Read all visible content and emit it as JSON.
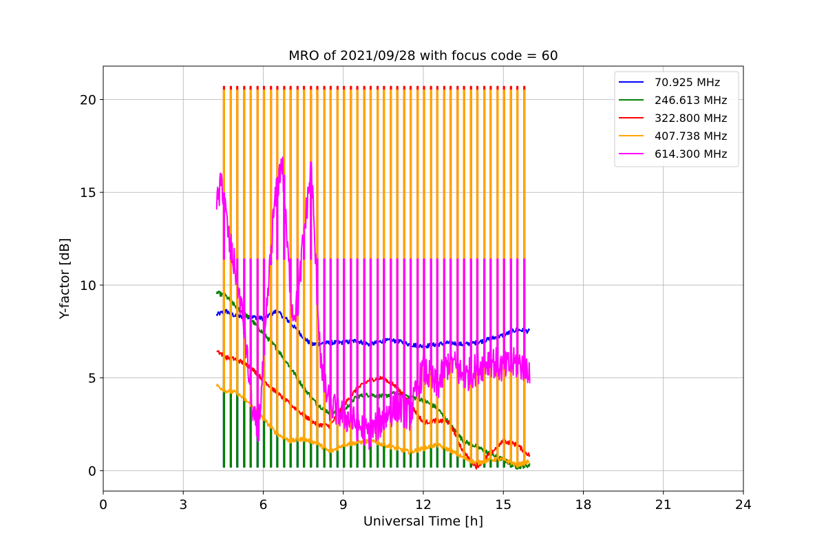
{
  "chart_data": {
    "type": "line",
    "title": "MRO of 2021/09/28 with focus code = 60",
    "xlabel": "Universal Time [h]",
    "ylabel": "Y-factor [dB]",
    "xlim": [
      0,
      24
    ],
    "ylim": [
      -1.1,
      21.8
    ],
    "xticks": [
      0,
      3,
      6,
      9,
      12,
      15,
      18,
      21,
      24
    ],
    "yticks": [
      0,
      5,
      10,
      15,
      20
    ],
    "grid": true,
    "legend_position": "top-right",
    "series": [
      {
        "name": "70.925 MHz",
        "label": " 70.925 MHz",
        "color": "#0000ff",
        "baseline": [
          [
            4.25,
            8.4
          ],
          [
            4.6,
            8.6
          ],
          [
            5.0,
            8.3
          ],
          [
            5.5,
            8.3
          ],
          [
            6.0,
            8.2
          ],
          [
            6.5,
            8.6
          ],
          [
            7.0,
            8.0
          ],
          [
            7.5,
            7.2
          ],
          [
            7.8,
            6.8
          ],
          [
            8.5,
            6.9
          ],
          [
            9.0,
            6.9
          ],
          [
            9.5,
            7.0
          ],
          [
            10.0,
            6.8
          ],
          [
            10.5,
            7.0
          ],
          [
            11.0,
            7.0
          ],
          [
            11.5,
            6.8
          ],
          [
            12.0,
            6.7
          ],
          [
            12.5,
            6.8
          ],
          [
            13.0,
            6.9
          ],
          [
            13.5,
            6.8
          ],
          [
            14.0,
            6.9
          ],
          [
            14.5,
            7.1
          ],
          [
            15.0,
            7.3
          ],
          [
            15.5,
            7.6
          ],
          [
            16.0,
            7.5
          ]
        ],
        "pulse_peak": 0.2,
        "pulse_start": 4.5,
        "pulse_end": 16.0
      },
      {
        "name": "246.613 MHz",
        "label": "246.613 MHz",
        "color": "#008000",
        "baseline": [
          [
            4.25,
            9.6
          ],
          [
            4.6,
            9.4
          ],
          [
            5.0,
            8.8
          ],
          [
            5.5,
            8.2
          ],
          [
            6.0,
            7.4
          ],
          [
            6.5,
            6.6
          ],
          [
            7.0,
            5.6
          ],
          [
            7.5,
            4.5
          ],
          [
            8.0,
            3.6
          ],
          [
            8.5,
            3.1
          ],
          [
            9.0,
            3.2
          ],
          [
            9.5,
            4.0
          ],
          [
            10.0,
            4.1
          ],
          [
            10.5,
            4.0
          ],
          [
            11.0,
            4.2
          ],
          [
            11.5,
            4.0
          ],
          [
            12.0,
            3.8
          ],
          [
            12.5,
            3.4
          ],
          [
            13.0,
            2.5
          ],
          [
            13.5,
            1.6
          ],
          [
            14.0,
            1.3
          ],
          [
            14.5,
            0.9
          ],
          [
            15.0,
            0.6
          ],
          [
            15.5,
            0.2
          ],
          [
            16.0,
            0.3
          ]
        ],
        "pulse_peak": 0.2,
        "pulse_start": 4.5,
        "pulse_end": 16.0
      },
      {
        "name": "322.800 MHz",
        "label": "322.800 MHz",
        "color": "#ff0000",
        "baseline": [
          [
            4.25,
            6.5
          ],
          [
            4.6,
            6.1
          ],
          [
            5.0,
            6.0
          ],
          [
            5.5,
            5.6
          ],
          [
            6.0,
            4.9
          ],
          [
            6.5,
            4.2
          ],
          [
            7.0,
            3.6
          ],
          [
            7.5,
            3.0
          ],
          [
            8.0,
            2.5
          ],
          [
            8.5,
            2.4
          ],
          [
            9.0,
            3.5
          ],
          [
            9.5,
            4.4
          ],
          [
            10.0,
            4.9
          ],
          [
            10.5,
            5.0
          ],
          [
            11.0,
            4.5
          ],
          [
            11.5,
            3.6
          ],
          [
            12.0,
            2.6
          ],
          [
            12.5,
            2.7
          ],
          [
            13.0,
            2.6
          ],
          [
            13.5,
            1.0
          ],
          [
            14.0,
            0.2
          ],
          [
            14.5,
            0.9
          ],
          [
            15.0,
            1.6
          ],
          [
            15.5,
            1.4
          ],
          [
            16.0,
            0.8
          ]
        ],
        "pulse_peak": 20.7,
        "pulse_start": 4.5,
        "pulse_end": 16.0
      },
      {
        "name": "407.738 MHz",
        "label": "407.738 MHz",
        "color": "#ffa500",
        "baseline": [
          [
            4.25,
            4.6
          ],
          [
            4.6,
            4.3
          ],
          [
            5.0,
            4.2
          ],
          [
            5.5,
            3.6
          ],
          [
            6.0,
            2.8
          ],
          [
            6.5,
            2.0
          ],
          [
            7.0,
            1.6
          ],
          [
            7.5,
            1.7
          ],
          [
            8.0,
            1.5
          ],
          [
            8.5,
            1.0
          ],
          [
            9.0,
            1.4
          ],
          [
            9.5,
            1.5
          ],
          [
            10.0,
            1.6
          ],
          [
            10.5,
            1.4
          ],
          [
            11.0,
            1.2
          ],
          [
            11.5,
            1.0
          ],
          [
            12.0,
            1.2
          ],
          [
            12.5,
            1.4
          ],
          [
            13.0,
            1.1
          ],
          [
            13.5,
            0.7
          ],
          [
            14.0,
            0.4
          ],
          [
            14.5,
            0.6
          ],
          [
            15.0,
            0.6
          ],
          [
            15.5,
            0.3
          ],
          [
            16.0,
            0.5
          ]
        ],
        "pulse_peak": 20.5,
        "pulse_start": 4.5,
        "pulse_end": 16.0
      },
      {
        "name": "614.300 MHz",
        "label": "614.300 MHz",
        "color": "#ff00ff",
        "baseline": [
          [
            4.25,
            14.2
          ],
          [
            4.45,
            15.6
          ],
          [
            4.7,
            12.5
          ],
          [
            5.0,
            10.5
          ],
          [
            5.3,
            7.5
          ],
          [
            5.6,
            3.0
          ],
          [
            5.8,
            2.0
          ],
          [
            6.0,
            5.5
          ],
          [
            6.2,
            10.0
          ],
          [
            6.4,
            14.0
          ],
          [
            6.7,
            16.9
          ],
          [
            6.9,
            12.0
          ],
          [
            7.1,
            8.5
          ],
          [
            7.3,
            9.0
          ],
          [
            7.5,
            12.5
          ],
          [
            7.8,
            16.4
          ],
          [
            8.0,
            10.0
          ],
          [
            8.2,
            5.0
          ],
          [
            8.5,
            3.5
          ],
          [
            9.0,
            3.0
          ],
          [
            9.5,
            2.5
          ],
          [
            10.0,
            2.0
          ],
          [
            10.5,
            2.8
          ],
          [
            11.0,
            3.5
          ],
          [
            11.5,
            3.0
          ],
          [
            12.0,
            5.5
          ],
          [
            12.5,
            4.5
          ],
          [
            13.0,
            6.0
          ],
          [
            13.5,
            5.0
          ],
          [
            14.0,
            5.5
          ],
          [
            14.5,
            6.0
          ],
          [
            15.0,
            5.5
          ],
          [
            15.5,
            5.8
          ],
          [
            16.0,
            5.5
          ]
        ],
        "pulse_peak": 11.4,
        "pulse_start": 4.5,
        "pulse_end": 16.0
      }
    ],
    "pulse_interval_h": 0.25
  }
}
